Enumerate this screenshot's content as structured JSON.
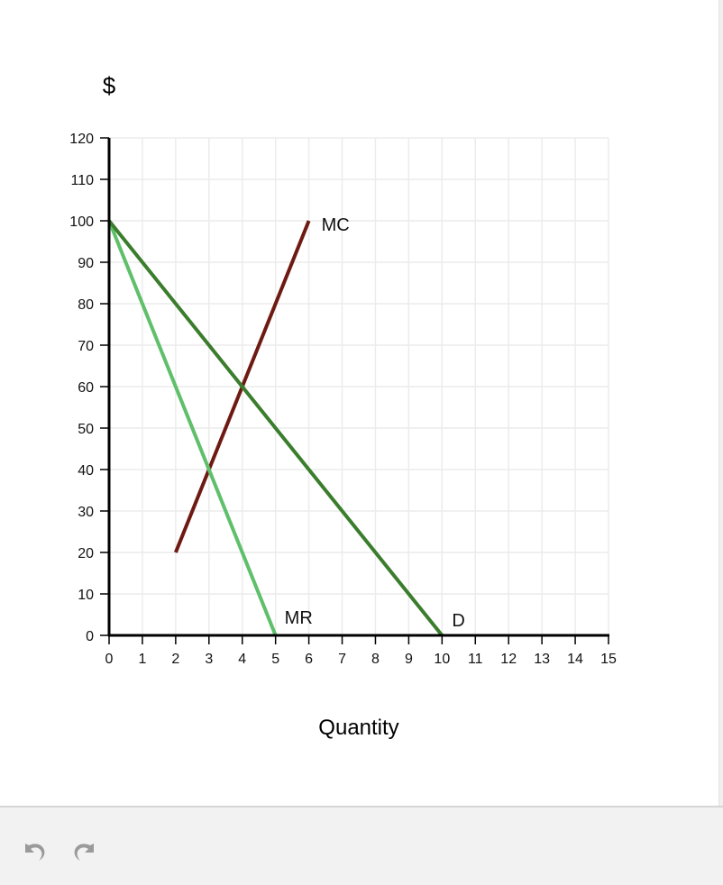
{
  "chart_data": {
    "type": "line",
    "ylabel": "$",
    "xlabel": "Quantity",
    "xlim": [
      0,
      15
    ],
    "ylim": [
      0,
      120
    ],
    "x_ticks": [
      0,
      1,
      2,
      3,
      4,
      5,
      6,
      7,
      8,
      9,
      10,
      11,
      12,
      13,
      14,
      15
    ],
    "y_ticks": [
      0,
      10,
      20,
      30,
      40,
      50,
      60,
      70,
      80,
      90,
      100,
      110,
      120
    ],
    "grid": true,
    "series": [
      {
        "name": "MC",
        "color": "#6e1a12",
        "points": [
          [
            2,
            20
          ],
          [
            6,
            100
          ]
        ]
      },
      {
        "name": "MR",
        "color": "#5fbf6a",
        "points": [
          [
            0,
            100
          ],
          [
            5,
            0
          ]
        ]
      },
      {
        "name": "D",
        "color": "#3a7d2c",
        "points": [
          [
            0,
            100
          ],
          [
            10,
            0
          ]
        ]
      }
    ]
  },
  "toolbar": {
    "undo_icon": "undo-arrow-icon",
    "redo_icon": "redo-arrow-icon",
    "icon_color": "#9a9a9a"
  }
}
